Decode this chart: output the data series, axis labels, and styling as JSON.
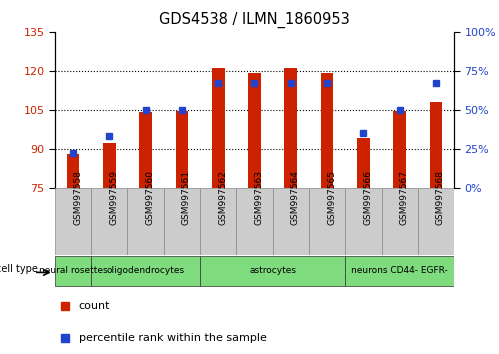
{
  "title": "GDS4538 / ILMN_1860953",
  "samples": [
    "GSM997558",
    "GSM997559",
    "GSM997560",
    "GSM997561",
    "GSM997562",
    "GSM997563",
    "GSM997564",
    "GSM997565",
    "GSM997566",
    "GSM997567",
    "GSM997568"
  ],
  "count_values": [
    88,
    92,
    104,
    104.5,
    121,
    119,
    121,
    119,
    94,
    104.5,
    108
  ],
  "percentile_values": [
    22,
    33,
    50,
    50,
    67,
    67,
    67,
    67,
    35,
    50,
    67
  ],
  "ylim_left": [
    75,
    135
  ],
  "ylim_right": [
    0,
    100
  ],
  "yticks_left": [
    75,
    90,
    105,
    120,
    135
  ],
  "yticks_right": [
    0,
    25,
    50,
    75,
    100
  ],
  "bar_color": "#CC2200",
  "square_color": "#2244CC",
  "bg_color": "#FFFFFF",
  "cell_type_bg": "#7EDB7E",
  "tick_box_bg": "#CCCCCC",
  "cell_types": [
    {
      "label": "neural rosettes",
      "start": 0,
      "end": 1
    },
    {
      "label": "oligodendrocytes",
      "start": 1,
      "end": 4
    },
    {
      "label": "astrocytes",
      "start": 4,
      "end": 8
    },
    {
      "label": "neurons CD44- EGFR-",
      "start": 8,
      "end": 11
    }
  ],
  "left_axis_color": "#CC2200",
  "right_axis_color": "#2244CC",
  "bar_width": 0.35,
  "tick_label_fontsize": 6.5,
  "title_fontsize": 10.5,
  "legend_fontsize": 8
}
